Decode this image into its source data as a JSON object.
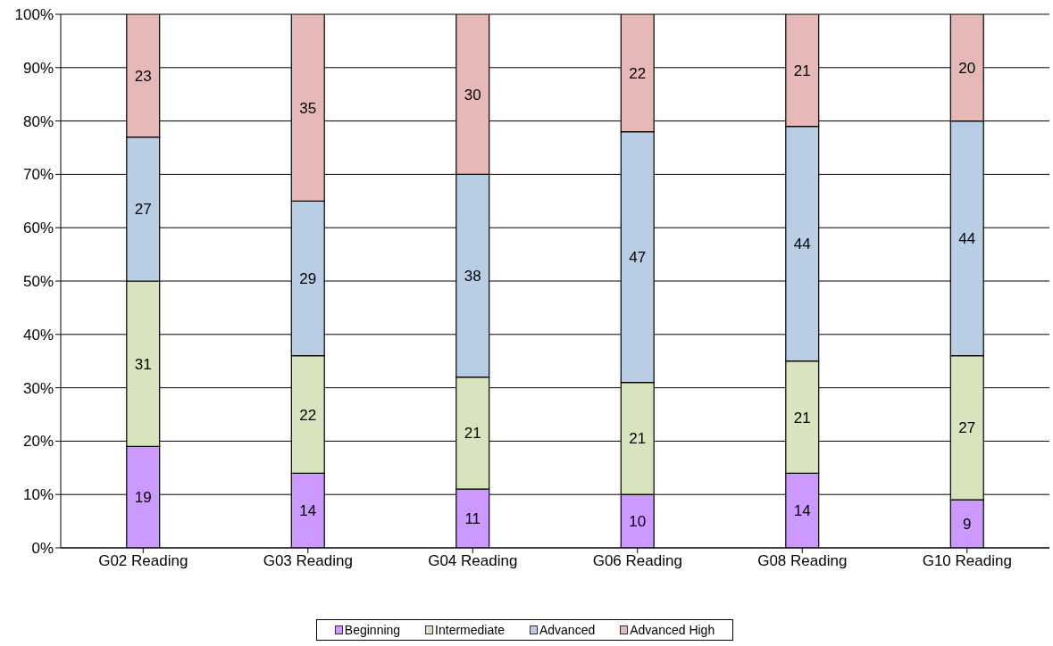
{
  "chart_data": {
    "type": "bar",
    "stacked": true,
    "categories": [
      "G02 Reading",
      "G03 Reading",
      "G04 Reading",
      "G06 Reading",
      "G08 Reading",
      "G10 Reading"
    ],
    "series": [
      {
        "name": "Beginning",
        "color": "#cc99ff",
        "values": [
          19,
          14,
          11,
          10,
          14,
          9
        ]
      },
      {
        "name": "Intermediate",
        "color": "#d7e4bd",
        "values": [
          31,
          22,
          21,
          21,
          21,
          27
        ]
      },
      {
        "name": "Advanced",
        "color": "#b9cde5",
        "values": [
          27,
          29,
          38,
          47,
          44,
          44
        ]
      },
      {
        "name": "Advanced High",
        "color": "#e6b9b8",
        "values": [
          23,
          35,
          30,
          22,
          21,
          20
        ]
      }
    ],
    "ylim": [
      0,
      100
    ],
    "yticks": [
      {
        "value": 0,
        "label": "0%"
      },
      {
        "value": 10,
        "label": "10%"
      },
      {
        "value": 20,
        "label": "20%"
      },
      {
        "value": 30,
        "label": "30%"
      },
      {
        "value": 40,
        "label": "40%"
      },
      {
        "value": 50,
        "label": "50%"
      },
      {
        "value": 60,
        "label": "60%"
      },
      {
        "value": 70,
        "label": "70%"
      },
      {
        "value": 80,
        "label": "80%"
      },
      {
        "value": 90,
        "label": "90%"
      },
      {
        "value": 100,
        "label": "100%"
      }
    ],
    "grid": "y",
    "legend": "bottom",
    "data_labels": true
  }
}
